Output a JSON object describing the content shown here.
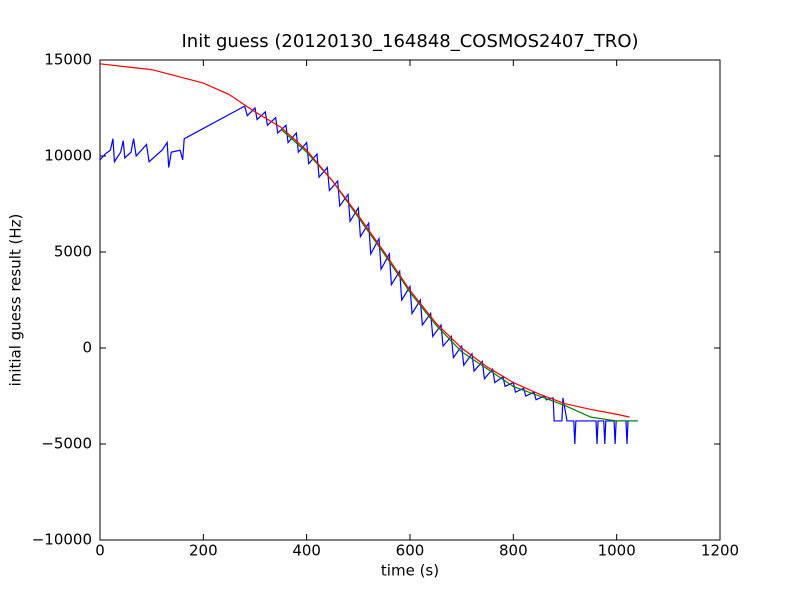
{
  "chart_data": {
    "type": "line",
    "title": "Init guess (20120130_164848_COSMOS2407_TRO)",
    "xlabel": "time (s)",
    "ylabel": "initial guess result (Hz)",
    "xlim": [
      0,
      1200
    ],
    "ylim": [
      -10000,
      15000
    ],
    "xticks": [
      0,
      200,
      400,
      600,
      800,
      1000,
      1200
    ],
    "yticks": [
      {
        "value": -10000,
        "label": "−10000"
      },
      {
        "value": -5000,
        "label": "−5000"
      },
      0,
      5000,
      10000,
      15000
    ],
    "grid": false,
    "series": [
      {
        "color": "#0000ff",
        "x": [
          0,
          10,
          20,
          25,
          28,
          40,
          45,
          48,
          60,
          65,
          70,
          90,
          95,
          120,
          130,
          133,
          138,
          155,
          160,
          163,
          170,
          280,
          285,
          300,
          304,
          320,
          324,
          340,
          344,
          360,
          364,
          380,
          384,
          400,
          404,
          420,
          424,
          440,
          444,
          460,
          464,
          480,
          484,
          500,
          504,
          520,
          524,
          540,
          544,
          560,
          564,
          580,
          584,
          600,
          604,
          620,
          624,
          640,
          644,
          660,
          664,
          680,
          684,
          700,
          704,
          720,
          724,
          740,
          744,
          760,
          764,
          780,
          784,
          800,
          804,
          820,
          824,
          840,
          844,
          860,
          864,
          877,
          879,
          894,
          896,
          904,
          917,
          919,
          921,
          960,
          962,
          964,
          975,
          977,
          979,
          995,
          997,
          999,
          1018,
          1020,
          1022,
          1041
        ],
        "values": [
          9800,
          10100,
          10300,
          10900,
          9700,
          10200,
          10800,
          9900,
          10200,
          10900,
          10000,
          10600,
          9700,
          10300,
          10700,
          9400,
          10200,
          10300,
          9800,
          10900,
          11000,
          12600,
          12100,
          12500,
          11900,
          12300,
          11600,
          12000,
          11200,
          11600,
          10700,
          11200,
          10200,
          10700,
          9600,
          10100,
          8900,
          9400,
          8200,
          8700,
          7400,
          8000,
          6600,
          7300,
          5800,
          6500,
          4900,
          5700,
          4100,
          4900,
          3300,
          4000,
          2500,
          3200,
          1800,
          2500,
          1200,
          1800,
          600,
          1200,
          100,
          600,
          -500,
          100,
          -900,
          -300,
          -1200,
          -700,
          -1600,
          -1100,
          -1800,
          -1500,
          -2000,
          -1800,
          -2300,
          -2100,
          -2500,
          -2300,
          -2700,
          -2500,
          -2700,
          -2600,
          -3800,
          -3800,
          -2600,
          -3800,
          -3800,
          -5000,
          -3800,
          -3800,
          -5000,
          -3800,
          -3800,
          -5000,
          -3800,
          -3800,
          -5000,
          -3800,
          -3800,
          -5000,
          -3800,
          -3800
        ]
      },
      {
        "color": "#008000",
        "x": [
          350,
          400,
          450,
          500,
          550,
          600,
          650,
          700,
          750,
          800,
          850,
          900,
          950,
          1000,
          1040
        ],
        "values": [
          11400,
          10200,
          8700,
          6800,
          4900,
          2900,
          1200,
          -200,
          -1100,
          -2000,
          -2500,
          -3000,
          -3600,
          -3800,
          -3800
        ]
      },
      {
        "color": "#ff0000",
        "x": [
          0,
          100,
          200,
          250,
          300,
          350,
          400,
          450,
          500,
          550,
          600,
          650,
          700,
          750,
          800,
          850,
          900,
          950,
          1000,
          1025
        ],
        "values": [
          14800,
          14500,
          13800,
          13200,
          12300,
          11500,
          10300,
          8700,
          6900,
          5000,
          3000,
          1300,
          0,
          -1000,
          -1800,
          -2400,
          -2900,
          -3200,
          -3450,
          -3600
        ]
      }
    ]
  }
}
